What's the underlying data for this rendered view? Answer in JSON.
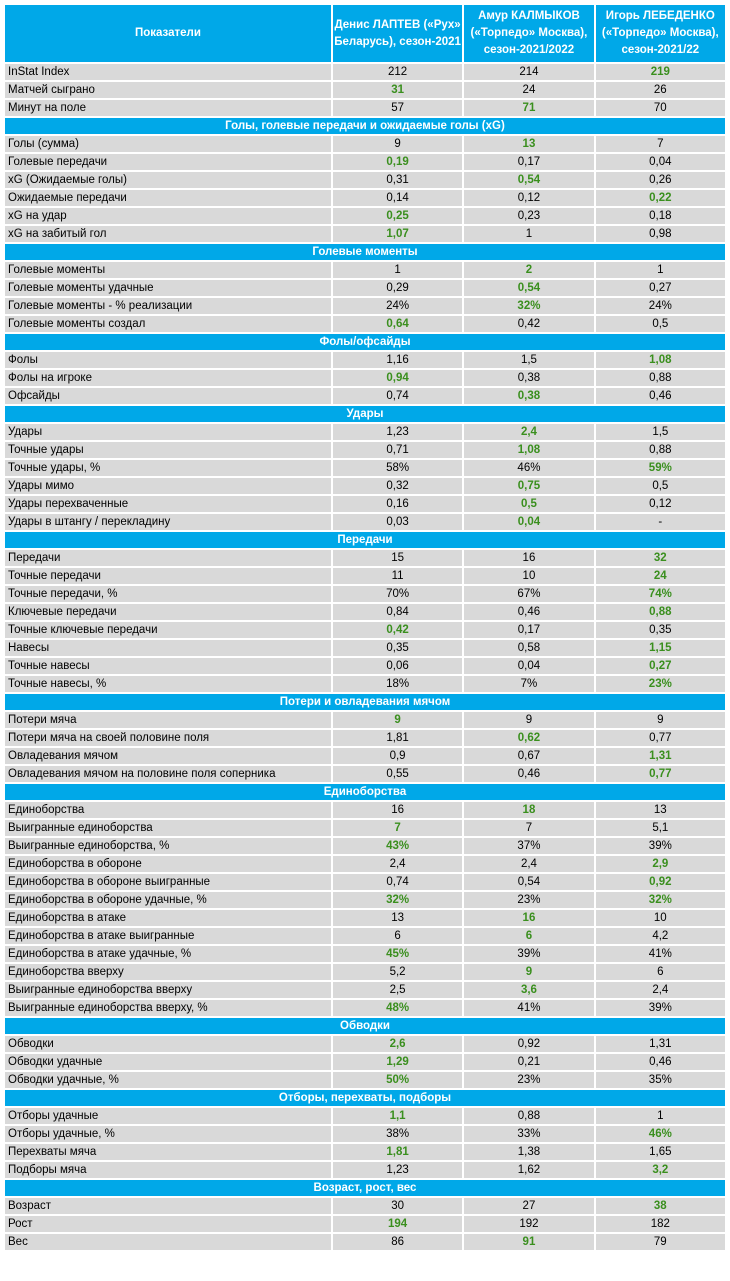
{
  "header": {
    "indicators": "Показатели",
    "players": [
      "Денис ЛАПТЕВ («Рух» Беларусь), сезон-2021",
      "Амур КАЛМЫКОВ («Торпедо» Москва), сезон-2021/2022",
      "Игорь ЛЕБЕДЕНКО («Торпедо» Москва), сезон-2021/22"
    ]
  },
  "colors": {
    "header_bg": "#00a8e8",
    "row_bg": "#d9d9d9",
    "best_value": "#3a8f1e"
  },
  "rows": [
    {
      "type": "data",
      "label": "InStat Index",
      "values": [
        "212",
        "214",
        "219"
      ],
      "best": [
        2
      ]
    },
    {
      "type": "data",
      "label": "Матчей сыграно",
      "values": [
        "31",
        "24",
        "26"
      ],
      "best": [
        0
      ]
    },
    {
      "type": "data",
      "label": "Минут на поле",
      "values": [
        "57",
        "71",
        "70"
      ],
      "best": [
        1
      ]
    },
    {
      "type": "section",
      "label": "Голы, голевые передачи и ожидаемые голы (xG)"
    },
    {
      "type": "data",
      "label": "Голы (сумма)",
      "values": [
        "9",
        "13",
        "7"
      ],
      "best": [
        1
      ]
    },
    {
      "type": "data",
      "label": "Голевые передачи",
      "values": [
        "0,19",
        "0,17",
        "0,04"
      ],
      "best": [
        0
      ]
    },
    {
      "type": "data",
      "label": "xG (Ожидаемые голы)",
      "values": [
        "0,31",
        "0,54",
        "0,26"
      ],
      "best": [
        1
      ]
    },
    {
      "type": "data",
      "label": "Ожидаемые передачи",
      "values": [
        "0,14",
        "0,12",
        "0,22"
      ],
      "best": [
        2
      ]
    },
    {
      "type": "data",
      "label": "xG на удар",
      "values": [
        "0,25",
        "0,23",
        "0,18"
      ],
      "best": [
        0
      ]
    },
    {
      "type": "data",
      "label": "xG на забитый гол",
      "values": [
        "1,07",
        "1",
        "0,98"
      ],
      "best": [
        0
      ]
    },
    {
      "type": "section",
      "label": "Голевые моменты"
    },
    {
      "type": "data",
      "label": "Голевые моменты",
      "values": [
        "1",
        "2",
        "1"
      ],
      "best": [
        1
      ]
    },
    {
      "type": "data",
      "label": "Голевые моменты удачные",
      "values": [
        "0,29",
        "0,54",
        "0,27"
      ],
      "best": [
        1
      ]
    },
    {
      "type": "data",
      "label": "Голевые моменты - % реализации",
      "values": [
        "24%",
        "32%",
        "24%"
      ],
      "best": [
        1
      ]
    },
    {
      "type": "data",
      "label": "Голевые моменты создал",
      "values": [
        "0,64",
        "0,42",
        "0,5"
      ],
      "best": [
        0
      ]
    },
    {
      "type": "section",
      "label": "Фолы/офсайды"
    },
    {
      "type": "data",
      "label": "Фолы",
      "values": [
        "1,16",
        "1,5",
        "1,08"
      ],
      "best": [
        2
      ]
    },
    {
      "type": "data",
      "label": "Фолы на игроке",
      "values": [
        "0,94",
        "0,38",
        "0,88"
      ],
      "best": [
        0
      ]
    },
    {
      "type": "data",
      "label": "Офсайды",
      "values": [
        "0,74",
        "0,38",
        "0,46"
      ],
      "best": [
        1
      ]
    },
    {
      "type": "section",
      "label": "Удары"
    },
    {
      "type": "data",
      "label": "Удары",
      "values": [
        "1,23",
        "2,4",
        "1,5"
      ],
      "best": [
        1
      ]
    },
    {
      "type": "data",
      "label": "Точные удары",
      "values": [
        "0,71",
        "1,08",
        "0,88"
      ],
      "best": [
        1
      ]
    },
    {
      "type": "data",
      "label": "Точные удары, %",
      "values": [
        "58%",
        "46%",
        "59%"
      ],
      "best": [
        2
      ]
    },
    {
      "type": "data",
      "label": "Удары мимо",
      "values": [
        "0,32",
        "0,75",
        "0,5"
      ],
      "best": [
        1
      ]
    },
    {
      "type": "data",
      "label": "Удары перехваченные",
      "values": [
        "0,16",
        "0,5",
        "0,12"
      ],
      "best": [
        1
      ]
    },
    {
      "type": "data",
      "label": "Удары в штангу / перекладину",
      "values": [
        "0,03",
        "0,04",
        "-"
      ],
      "best": [
        1
      ]
    },
    {
      "type": "section",
      "label": "Передачи"
    },
    {
      "type": "data",
      "label": "Передачи",
      "values": [
        "15",
        "16",
        "32"
      ],
      "best": [
        2
      ]
    },
    {
      "type": "data",
      "label": "Точные передачи",
      "values": [
        "11",
        "10",
        "24"
      ],
      "best": [
        2
      ]
    },
    {
      "type": "data",
      "label": "Точные передачи, %",
      "values": [
        "70%",
        "67%",
        "74%"
      ],
      "best": [
        2
      ]
    },
    {
      "type": "data",
      "label": "Ключевые передачи",
      "values": [
        "0,84",
        "0,46",
        "0,88"
      ],
      "best": [
        2
      ]
    },
    {
      "type": "data",
      "label": "Точные ключевые передачи",
      "values": [
        "0,42",
        "0,17",
        "0,35"
      ],
      "best": [
        0
      ]
    },
    {
      "type": "data",
      "label": "Навесы",
      "values": [
        "0,35",
        "0,58",
        "1,15"
      ],
      "best": [
        2
      ]
    },
    {
      "type": "data",
      "label": "Точные навесы",
      "values": [
        "0,06",
        "0,04",
        "0,27"
      ],
      "best": [
        2
      ]
    },
    {
      "type": "data",
      "label": "Точные навесы, %",
      "values": [
        "18%",
        "7%",
        "23%"
      ],
      "best": [
        2
      ]
    },
    {
      "type": "section",
      "label": "Потери и овладевания мячом"
    },
    {
      "type": "data",
      "label": "Потери мяча",
      "values": [
        "9",
        "9",
        "9"
      ],
      "best": [
        0
      ]
    },
    {
      "type": "data",
      "label": "Потери мяча на своей половине поля",
      "values": [
        "1,81",
        "0,62",
        "0,77"
      ],
      "best": [
        1
      ]
    },
    {
      "type": "data",
      "label": "Овладевания мячом",
      "values": [
        "0,9",
        "0,67",
        "1,31"
      ],
      "best": [
        2
      ]
    },
    {
      "type": "data",
      "label": "Овладевания мячом на половине поля соперника",
      "values": [
        "0,55",
        "0,46",
        "0,77"
      ],
      "best": [
        2
      ]
    },
    {
      "type": "section",
      "label": "Единоборства"
    },
    {
      "type": "data",
      "label": "Единоборства",
      "values": [
        "16",
        "18",
        "13"
      ],
      "best": [
        1
      ]
    },
    {
      "type": "data",
      "label": "Выигранные единоборства",
      "values": [
        "7",
        "7",
        "5,1"
      ],
      "best": [
        0
      ]
    },
    {
      "type": "data",
      "label": "Выигранные единоборства, %",
      "values": [
        "43%",
        "37%",
        "39%"
      ],
      "best": [
        0
      ]
    },
    {
      "type": "data",
      "label": "Единоборства в обороне",
      "values": [
        "2,4",
        "2,4",
        "2,9"
      ],
      "best": [
        2
      ]
    },
    {
      "type": "data",
      "label": "Единоборства в обороне выигранные",
      "values": [
        "0,74",
        "0,54",
        "0,92"
      ],
      "best": [
        2
      ]
    },
    {
      "type": "data",
      "label": "Единоборства в обороне удачные, %",
      "values": [
        "32%",
        "23%",
        "32%"
      ],
      "best": [
        0,
        2
      ]
    },
    {
      "type": "data",
      "label": "Единоборства в атаке",
      "values": [
        "13",
        "16",
        "10"
      ],
      "best": [
        1
      ]
    },
    {
      "type": "data",
      "label": "Единоборства в атаке выигранные",
      "values": [
        "6",
        "6",
        "4,2"
      ],
      "best": [
        1
      ]
    },
    {
      "type": "data",
      "label": "Единоборства в атаке удачные, %",
      "values": [
        "45%",
        "39%",
        "41%"
      ],
      "best": [
        0
      ]
    },
    {
      "type": "data",
      "label": "Единоборства вверху",
      "values": [
        "5,2",
        "9",
        "6"
      ],
      "best": [
        1
      ]
    },
    {
      "type": "data",
      "label": "Выигранные единоборства вверху",
      "values": [
        "2,5",
        "3,6",
        "2,4"
      ],
      "best": [
        1
      ]
    },
    {
      "type": "data",
      "label": "Выигранные единоборства вверху, %",
      "values": [
        "48%",
        "41%",
        "39%"
      ],
      "best": [
        0
      ]
    },
    {
      "type": "section",
      "label": "Обводки"
    },
    {
      "type": "data",
      "label": "Обводки",
      "values": [
        "2,6",
        "0,92",
        "1,31"
      ],
      "best": [
        0
      ]
    },
    {
      "type": "data",
      "label": "Обводки удачные",
      "values": [
        "1,29",
        "0,21",
        "0,46"
      ],
      "best": [
        0
      ]
    },
    {
      "type": "data",
      "label": "Обводки удачные, %",
      "values": [
        "50%",
        "23%",
        "35%"
      ],
      "best": [
        0
      ]
    },
    {
      "type": "section",
      "label": "Отборы, перехваты, подборы"
    },
    {
      "type": "data",
      "label": "Отборы удачные",
      "values": [
        "1,1",
        "0,88",
        "1"
      ],
      "best": [
        0
      ]
    },
    {
      "type": "data",
      "label": "Отборы удачные, %",
      "values": [
        "38%",
        "33%",
        "46%"
      ],
      "best": [
        2
      ]
    },
    {
      "type": "data",
      "label": "Перехваты мяча",
      "values": [
        "1,81",
        "1,38",
        "1,65"
      ],
      "best": [
        0
      ]
    },
    {
      "type": "data",
      "label": "Подборы мяча",
      "values": [
        "1,23",
        "1,62",
        "3,2"
      ],
      "best": [
        2
      ]
    },
    {
      "type": "section",
      "label": "Возраст, рост, вес"
    },
    {
      "type": "data",
      "label": "Возраст",
      "values": [
        "30",
        "27",
        "38"
      ],
      "best": [
        2
      ]
    },
    {
      "type": "data",
      "label": "Рост",
      "values": [
        "194",
        "192",
        "182"
      ],
      "best": [
        0
      ]
    },
    {
      "type": "data",
      "label": "Вес",
      "values": [
        "86",
        "91",
        "79"
      ],
      "best": [
        1
      ]
    }
  ]
}
